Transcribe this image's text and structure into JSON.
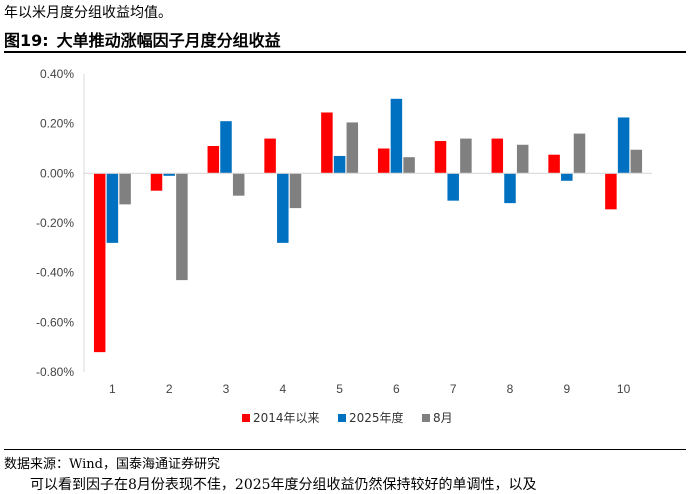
{
  "header_text": "年以米月度分组收益均值。",
  "figure": {
    "number": "图19:",
    "title": "大单推动涨幅因子月度分组收益"
  },
  "source_note": "数据来源：Wind，国泰海通证券研究",
  "footer_text": "可以看到因子在8月份表现不佳，2025年度分组收益仍然保持较好的单调性，以及",
  "chart_data": {
    "type": "bar",
    "categories": [
      "1",
      "2",
      "3",
      "4",
      "5",
      "6",
      "7",
      "8",
      "9",
      "10"
    ],
    "series": [
      {
        "name": "2014年以来",
        "color": "#ff0000",
        "values": [
          -0.72,
          -0.07,
          0.11,
          0.14,
          0.245,
          0.1,
          0.13,
          0.14,
          0.075,
          -0.145
        ]
      },
      {
        "name": "2025年度",
        "color": "#0070c0",
        "values": [
          -0.28,
          -0.01,
          0.21,
          -0.28,
          0.07,
          0.3,
          -0.11,
          -0.12,
          -0.03,
          0.225
        ]
      },
      {
        "name": "8月",
        "color": "#808080",
        "values": [
          -0.125,
          -0.43,
          -0.09,
          -0.14,
          0.205,
          0.065,
          0.14,
          0.115,
          0.16,
          0.095
        ]
      }
    ],
    "y_ticks": [
      "0.40%",
      "0.20%",
      "0.00%",
      "-0.20%",
      "-0.40%",
      "-0.60%",
      "-0.80%"
    ],
    "y_tick_values": [
      0.4,
      0.2,
      0.0,
      -0.2,
      -0.4,
      -0.6,
      -0.8
    ],
    "ylim": [
      -0.8,
      0.4
    ],
    "unit": "%",
    "grid": false,
    "legend_position": "bottom"
  }
}
